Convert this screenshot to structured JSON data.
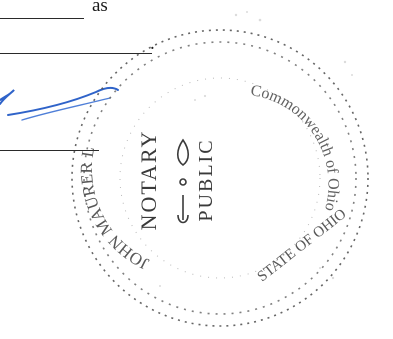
{
  "document": {
    "word_as": "as",
    "period": "."
  },
  "seal": {
    "center_line_1": "NOTARY",
    "center_line_2": "PUBLIC",
    "ring_text": "JOHN MAURER LOPEZ",
    "right_text": "Commonwealth of Ohio",
    "right_text_2": "STATE OF OHIO"
  },
  "signature": {
    "ink_color": "#2f63c9"
  },
  "colors": {
    "text": "#1a1a1a",
    "seal_ink": "#3a3a3a"
  }
}
